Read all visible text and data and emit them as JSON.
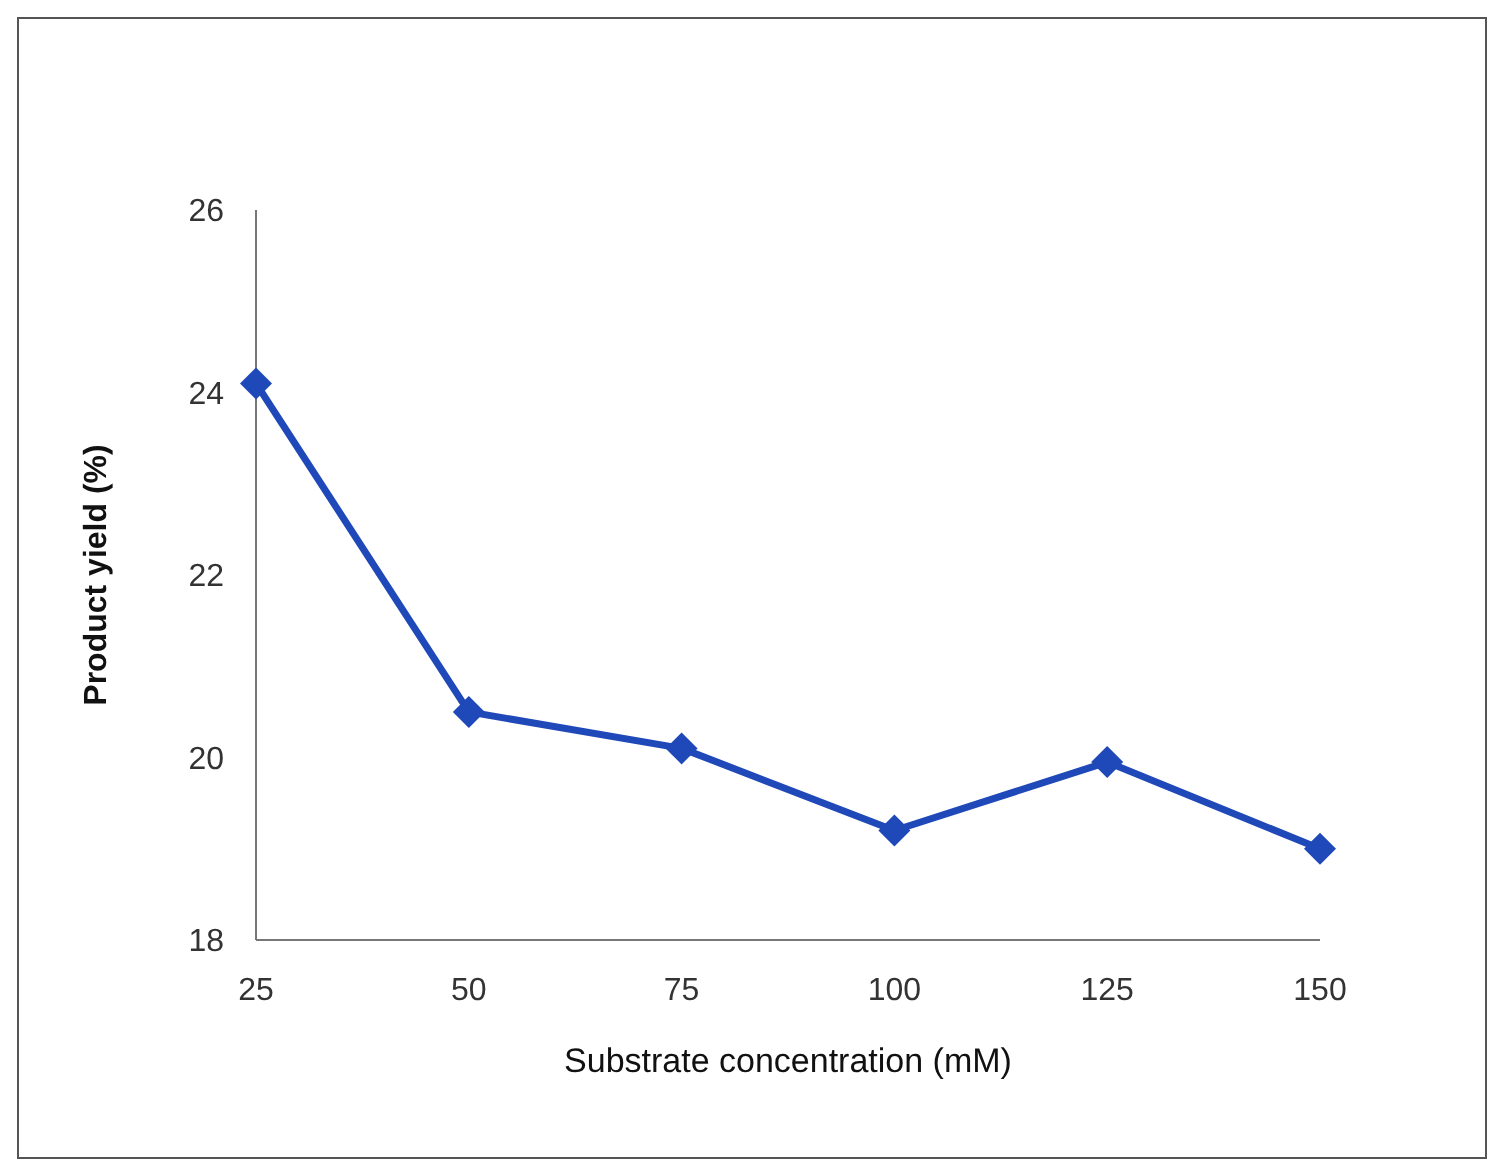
{
  "chart_data": {
    "type": "line",
    "xlabel": "Substrate concentration (mM)",
    "ylabel": "Product yield (%)",
    "x": [
      25,
      50,
      75,
      100,
      125,
      150
    ],
    "series": [
      {
        "color": "#1f48b8",
        "values": [
          24.1,
          20.5,
          20.1,
          19.2,
          19.95,
          19.0
        ]
      }
    ],
    "xlim": [
      25,
      150
    ],
    "xticks": [
      25,
      50,
      75,
      100,
      125,
      150
    ],
    "ylim": [
      18,
      26
    ],
    "yticks": [
      18,
      20,
      22,
      24,
      26
    ],
    "marker": "diamond",
    "line_style": "solid"
  }
}
